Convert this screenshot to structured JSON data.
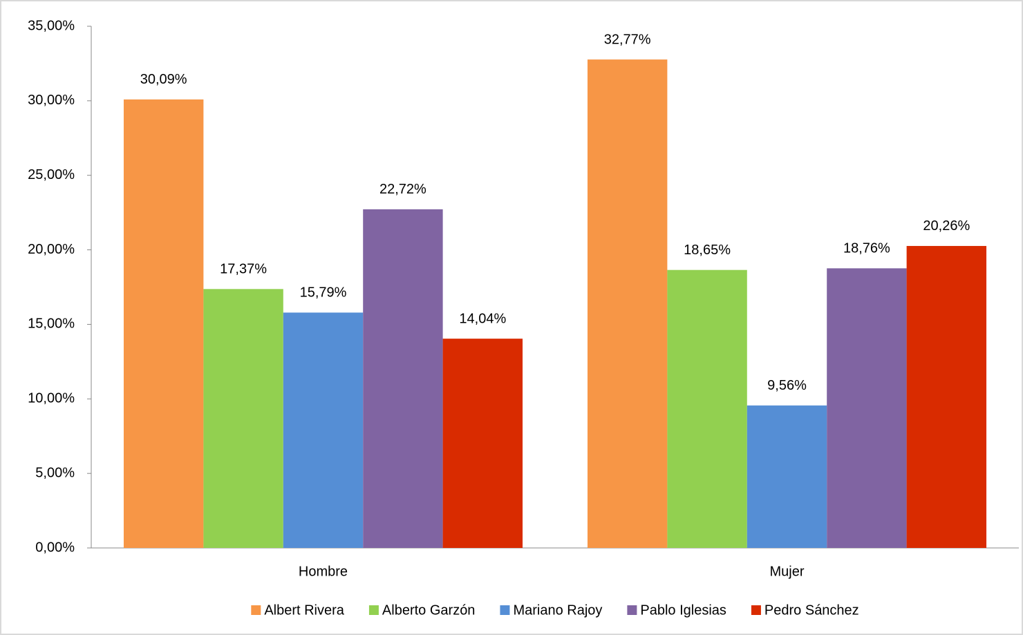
{
  "chart_data": {
    "type": "bar",
    "categories": [
      "Hombre",
      "Mujer"
    ],
    "series": [
      {
        "name": "Albert Rivera",
        "color": "#f79646",
        "values": [
          30.09,
          32.77
        ],
        "value_labels": [
          "30,09%",
          "32,77%"
        ]
      },
      {
        "name": "Alberto Garzón",
        "color": "#92d050",
        "values": [
          17.37,
          18.65
        ],
        "value_labels": [
          "17,37%",
          "18,65%"
        ]
      },
      {
        "name": "Mariano Rajoy",
        "color": "#558ed5",
        "values": [
          15.79,
          9.56
        ],
        "value_labels": [
          "15,79%",
          "9,56%"
        ]
      },
      {
        "name": "Pablo Iglesias",
        "color": "#8064a2",
        "values": [
          22.72,
          18.76
        ],
        "value_labels": [
          "22,72%",
          "18,76%"
        ]
      },
      {
        "name": "Pedro Sánchez",
        "color": "#d92b00",
        "values": [
          14.04,
          20.26
        ],
        "value_labels": [
          "14,04%",
          "20,26%"
        ]
      }
    ],
    "ylim": [
      0,
      35
    ],
    "yticks": [
      {
        "value": 0,
        "label": "0,00%"
      },
      {
        "value": 5,
        "label": "5,00%"
      },
      {
        "value": 10,
        "label": "10,00%"
      },
      {
        "value": 15,
        "label": "15,00%"
      },
      {
        "value": 20,
        "label": "20,00%"
      },
      {
        "value": 25,
        "label": "25,00%"
      },
      {
        "value": 30,
        "label": "30,00%"
      },
      {
        "value": 35,
        "label": "35,00%"
      }
    ],
    "grid": false,
    "legend": "bottom"
  }
}
